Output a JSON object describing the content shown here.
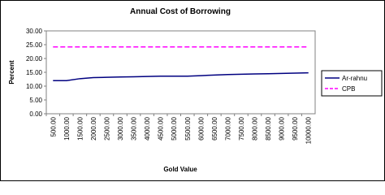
{
  "chart_data": {
    "type": "line",
    "title": "Annual Cost of Borrowing",
    "x_label": "Gold Value",
    "y_label": "Percent",
    "categories": [
      "500.00",
      "1000.00",
      "1500.00",
      "2000.00",
      "2500.00",
      "3000.00",
      "3500.00",
      "4000.00",
      "4500.00",
      "5000.00",
      "5500.00",
      "6000.00",
      "6500.00",
      "7000.00",
      "7500.00",
      "8000.00",
      "8500.00",
      "9000.00",
      "9500.00",
      "10000.00"
    ],
    "series": [
      {
        "name": "Ar-rahnu",
        "color": "#000080",
        "dash": false,
        "values": [
          12.0,
          12.0,
          12.7,
          13.1,
          13.2,
          13.3,
          13.4,
          13.5,
          13.6,
          13.6,
          13.6,
          13.8,
          14.0,
          14.2,
          14.3,
          14.4,
          14.5,
          14.6,
          14.7,
          14.8
        ]
      },
      {
        "name": "CPB",
        "color": "#ff00ff",
        "dash": true,
        "values": [
          24.2,
          24.2,
          24.2,
          24.2,
          24.2,
          24.2,
          24.2,
          24.2,
          24.2,
          24.2,
          24.2,
          24.2,
          24.2,
          24.2,
          24.2,
          24.2,
          24.2,
          24.2,
          24.2,
          24.2
        ]
      }
    ],
    "ylim": [
      0,
      30
    ],
    "yticks": [
      {
        "value": 0,
        "label": "0.00"
      },
      {
        "value": 5,
        "label": "5.00"
      },
      {
        "value": 10,
        "label": "10.00"
      },
      {
        "value": 15,
        "label": "15.00"
      },
      {
        "value": 20,
        "label": "20.00"
      },
      {
        "value": 25,
        "label": "25.00"
      },
      {
        "value": 30,
        "label": "30.00"
      }
    ],
    "legend": "right"
  }
}
